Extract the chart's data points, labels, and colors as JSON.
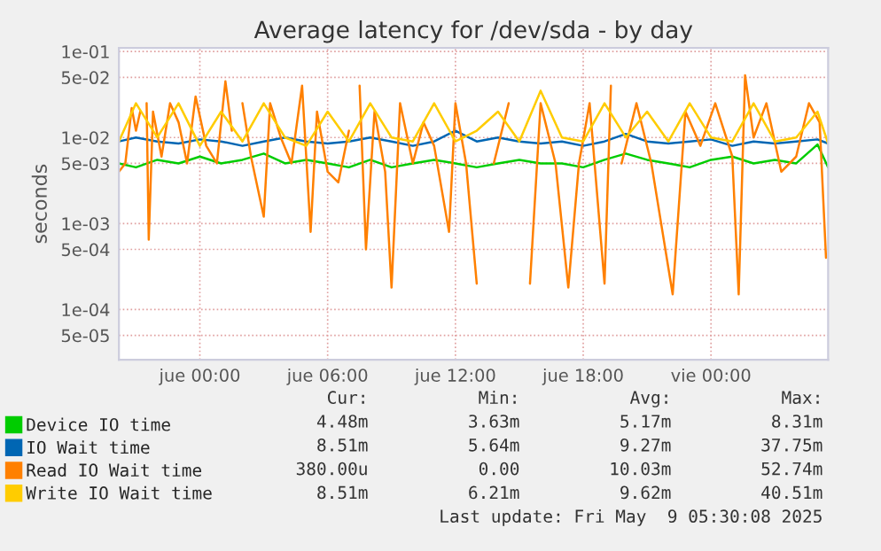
{
  "chart_data": {
    "type": "line",
    "title": "Average latency for /dev/sda - by day",
    "ylabel": "seconds",
    "log": "y",
    "grid": true,
    "legend": "bottom",
    "marker": "none",
    "line_style": "solid",
    "ylim": [
      2.6e-05,
      0.11
    ],
    "yticks": [
      {
        "value": 0.1,
        "label": "1e-01"
      },
      {
        "value": 0.05,
        "label": "5e-02"
      },
      {
        "value": 0.01,
        "label": "1e-02"
      },
      {
        "value": 0.005,
        "label": "5e-03"
      },
      {
        "value": 0.001,
        "label": "1e-03"
      },
      {
        "value": 0.0005,
        "label": "5e-04"
      },
      {
        "value": 0.0001,
        "label": "1e-04"
      },
      {
        "value": 5e-05,
        "label": "5e-05"
      }
    ],
    "xlim": [
      "2025-05-07T20:12",
      "2025-05-09T05:30"
    ],
    "xticks": [
      {
        "value": "2025-05-08T00:00",
        "label": "jue 00:00"
      },
      {
        "value": "2025-05-08T06:00",
        "label": "jue 06:00"
      },
      {
        "value": "2025-05-08T12:00",
        "label": "jue 12:00"
      },
      {
        "value": "2025-05-08T18:00",
        "label": "jue 18:00"
      },
      {
        "value": "2025-05-09T00:00",
        "label": "vie 00:00"
      }
    ],
    "x": [
      "2025-05-07T20:12",
      "2025-05-07T21:00",
      "2025-05-07T22:00",
      "2025-05-07T23:00",
      "2025-05-08T00:00",
      "2025-05-08T01:00",
      "2025-05-08T02:00",
      "2025-05-08T03:00",
      "2025-05-08T04:00",
      "2025-05-08T05:00",
      "2025-05-08T06:00",
      "2025-05-08T07:00",
      "2025-05-08T08:00",
      "2025-05-08T09:00",
      "2025-05-08T10:00",
      "2025-05-08T11:00",
      "2025-05-08T12:00",
      "2025-05-08T13:00",
      "2025-05-08T14:00",
      "2025-05-08T15:00",
      "2025-05-08T16:00",
      "2025-05-08T17:00",
      "2025-05-08T18:00",
      "2025-05-08T19:00",
      "2025-05-08T20:00",
      "2025-05-08T21:00",
      "2025-05-08T22:00",
      "2025-05-08T23:00",
      "2025-05-09T00:00",
      "2025-05-09T01:00",
      "2025-05-09T02:00",
      "2025-05-09T03:00",
      "2025-05-09T04:00",
      "2025-05-09T05:00",
      "2025-05-09T05:30"
    ],
    "series": [
      {
        "name": "Device IO time",
        "color": "#00cc00",
        "values": [
          0.005,
          0.0045,
          0.0055,
          0.005,
          0.006,
          0.005,
          0.0055,
          0.0065,
          0.005,
          0.0055,
          0.005,
          0.0045,
          0.0055,
          0.0045,
          0.005,
          0.0055,
          0.005,
          0.0045,
          0.005,
          0.0055,
          0.005,
          0.005,
          0.0045,
          0.0055,
          0.0065,
          0.0055,
          0.005,
          0.0045,
          0.0055,
          0.006,
          0.005,
          0.0055,
          0.005,
          0.0083,
          0.00448
        ]
      },
      {
        "name": "IO Wait time",
        "color": "#0066b3",
        "values": [
          0.009,
          0.01,
          0.009,
          0.0085,
          0.0095,
          0.009,
          0.008,
          0.009,
          0.01,
          0.009,
          0.0085,
          0.009,
          0.01,
          0.009,
          0.008,
          0.009,
          0.012,
          0.009,
          0.01,
          0.009,
          0.0085,
          0.009,
          0.008,
          0.009,
          0.011,
          0.009,
          0.0085,
          0.009,
          0.0095,
          0.008,
          0.009,
          0.0085,
          0.009,
          0.0095,
          0.00851
        ]
      },
      {
        "name": "Read IO Wait time",
        "color": "#ff8000",
        "x": [
          "2025-05-07T20:12",
          "2025-05-07T20:30",
          "2025-05-07T20:48",
          "2025-05-07T21:00",
          "2025-05-07T21:12",
          "2025-05-07T21:20",
          "2025-05-07T21:30",
          "2025-05-07T21:36",
          "2025-05-07T21:48",
          "2025-05-07T22:12",
          "2025-05-07T22:36",
          "2025-05-07T23:00",
          "2025-05-07T23:24",
          "2025-05-07T23:48",
          "2025-05-08T00:18",
          "2025-05-08T00:48",
          "2025-05-08T01:12",
          "2025-05-08T01:30",
          "2025-05-08T01:45",
          "2025-05-08T02:00",
          "2025-05-08T02:24",
          "2025-05-08T03:00",
          "2025-05-08T03:18",
          "2025-05-08T03:48",
          "2025-05-08T04:18",
          "2025-05-08T04:48",
          "2025-05-08T05:12",
          "2025-05-08T05:30",
          "2025-05-08T06:00",
          "2025-05-08T06:30",
          "2025-05-08T07:00",
          "2025-05-08T07:15",
          "2025-05-08T07:30",
          "2025-05-08T07:48",
          "2025-05-08T08:12",
          "2025-05-08T08:42",
          "2025-05-08T09:00",
          "2025-05-08T09:24",
          "2025-05-08T10:00",
          "2025-05-08T10:30",
          "2025-05-08T11:00",
          "2025-05-08T11:42",
          "2025-05-08T12:00",
          "2025-05-08T12:30",
          "2025-05-08T13:00",
          "2025-05-08T13:24",
          "2025-05-08T13:48",
          "2025-05-08T14:30",
          "2025-05-08T15:06",
          "2025-05-08T15:30",
          "2025-05-08T16:00",
          "2025-05-08T16:42",
          "2025-05-08T17:18",
          "2025-05-08T17:48",
          "2025-05-08T18:18",
          "2025-05-08T19:00",
          "2025-05-08T19:18",
          "2025-05-08T19:24",
          "2025-05-08T19:48",
          "2025-05-08T20:30",
          "2025-05-08T21:12",
          "2025-05-08T22:12",
          "2025-05-08T22:48",
          "2025-05-08T23:30",
          "2025-05-09T00:12",
          "2025-05-09T01:00",
          "2025-05-09T01:18",
          "2025-05-09T01:36",
          "2025-05-09T02:00",
          "2025-05-09T02:36",
          "2025-05-09T03:18",
          "2025-05-09T04:00",
          "2025-05-09T04:36",
          "2025-05-09T05:06",
          "2025-05-09T05:24"
        ],
        "values": [
          0.004,
          0.005,
          0.022,
          0.012,
          0.02,
          null,
          0.025,
          0.00065,
          0.02,
          0.006,
          0.025,
          0.015,
          0.005,
          0.03,
          0.008,
          0.005,
          0.045,
          0.012,
          null,
          0.025,
          0.006,
          0.0012,
          0.025,
          0.01,
          0.005,
          0.04,
          0.0008,
          0.02,
          0.004,
          0.003,
          0.012,
          null,
          0.04,
          0.0005,
          0.02,
          0.004,
          0.00018,
          0.025,
          0.005,
          0.015,
          0.008,
          0.0008,
          0.025,
          0.005,
          0.0002,
          null,
          0.005,
          0.025,
          null,
          0.0002,
          0.025,
          0.005,
          0.00018,
          0.005,
          0.025,
          0.0002,
          0.04,
          null,
          0.005,
          0.025,
          0.005,
          0.00015,
          0.02,
          0.008,
          0.025,
          0.006,
          0.00015,
          0.053,
          0.01,
          0.025,
          0.004,
          0.006,
          0.025,
          0.015,
          0.0004
        ]
      },
      {
        "name": "Write IO Wait time",
        "color": "#ffcc00",
        "values": [
          0.009,
          0.025,
          0.01,
          0.025,
          0.008,
          0.02,
          0.009,
          0.025,
          0.01,
          0.008,
          0.02,
          0.009,
          0.025,
          0.01,
          0.009,
          0.025,
          0.009,
          0.012,
          0.02,
          0.009,
          0.035,
          0.01,
          0.009,
          0.025,
          0.01,
          0.02,
          0.009,
          0.025,
          0.01,
          0.009,
          0.025,
          0.009,
          0.01,
          0.02,
          0.00851
        ]
      }
    ],
    "annotations": [
      "Cur:",
      "Min:",
      "Avg:",
      "Max:",
      "4.48m",
      "3.63m",
      "5.17m",
      "8.31m",
      "8.51m",
      "5.64m",
      "9.27m",
      "37.75m",
      "380.00u",
      "0.00",
      "10.03m",
      "52.74m",
      "8.51m",
      "6.21m",
      "9.62m",
      "40.51m",
      "Last update: Fri May  9 05:30:08 2025"
    ]
  }
}
